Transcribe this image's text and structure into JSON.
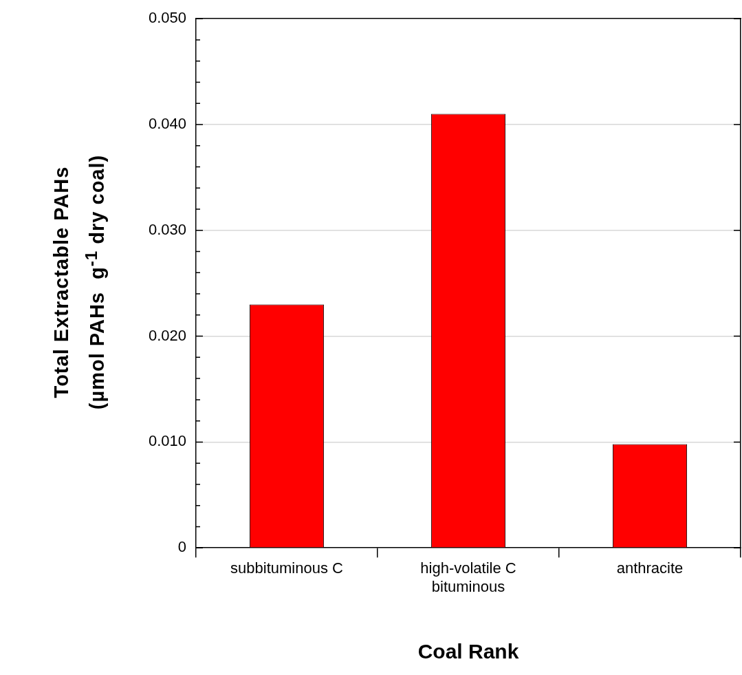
{
  "chart_data": {
    "type": "bar",
    "xlabel": "Coal Rank",
    "ylabel": "Total Extractable PAHs\n(µmol PAHs  g$^{-1}$ dry coal)",
    "categories": [
      "subbituminous C",
      "high-volatile C bituminous",
      "anthracite"
    ],
    "values": [
      0.023,
      0.041,
      0.0098
    ],
    "color": "#ff0000",
    "ylim": [
      0,
      0.05
    ],
    "yticks": [
      0,
      {
        "value": 0.002,
        "label": null
      },
      {
        "value": 0.004,
        "label": null
      },
      {
        "value": 0.006,
        "label": null
      },
      {
        "value": 0.008,
        "label": null
      },
      {
        "value": 0.01,
        "label": "0.010"
      },
      {
        "value": 0.012,
        "label": null
      },
      {
        "value": 0.014,
        "label": null
      },
      {
        "value": 0.016,
        "label": null
      },
      {
        "value": 0.018,
        "label": null
      },
      {
        "value": 0.02,
        "label": "0.020"
      },
      {
        "value": 0.022,
        "label": null
      },
      {
        "value": 0.024,
        "label": null
      },
      {
        "value": 0.026,
        "label": null
      },
      {
        "value": 0.028,
        "label": null
      },
      {
        "value": 0.03,
        "label": "0.030"
      },
      {
        "value": 0.032,
        "label": null
      },
      {
        "value": 0.034,
        "label": null
      },
      {
        "value": 0.036,
        "label": null
      },
      {
        "value": 0.038,
        "label": null
      },
      {
        "value": 0.04,
        "label": "0.040"
      },
      {
        "value": 0.042,
        "label": null
      },
      {
        "value": 0.044,
        "label": null
      },
      {
        "value": 0.046,
        "label": null
      },
      {
        "value": 0.048,
        "label": null
      },
      {
        "value": 0.05,
        "label": "0.050"
      }
    ],
    "grid": "y",
    "legend": false
  }
}
